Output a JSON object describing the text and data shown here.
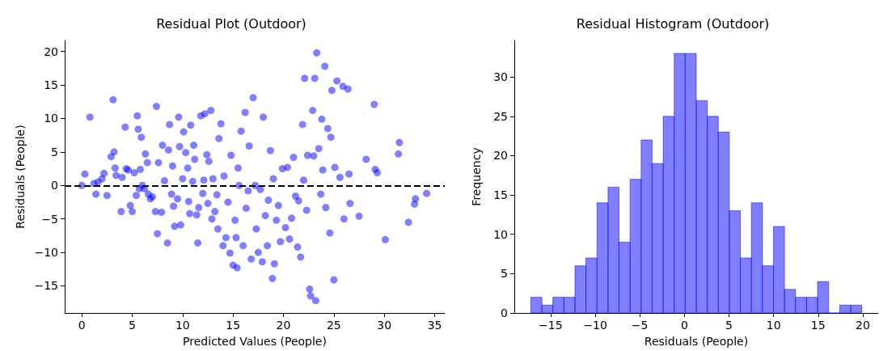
{
  "chart_data": [
    {
      "type": "scatter",
      "title": "Residual Plot (Outdoor)",
      "xlabel": "Predicted Values (People)",
      "ylabel": "Residuals (People)",
      "marker": "circle",
      "xlim": [
        -1.7,
        36.0
      ],
      "ylim": [
        -19.05,
        21.65
      ],
      "xticks": [
        0,
        5,
        10,
        15,
        20,
        25,
        30,
        35
      ],
      "yticks": [
        -15,
        -10,
        -5,
        0,
        5,
        10,
        15,
        20
      ],
      "ref_lines": [
        {
          "axis": "y",
          "value": 0,
          "color": "#000000",
          "line_style": "dashed"
        }
      ],
      "series": [
        {
          "color": "#0000ff",
          "x": [
            0,
            0.3,
            0.8,
            1.2,
            1.4,
            1.6,
            2,
            2.2,
            2.5,
            2.9,
            3.1,
            3.2,
            3.3,
            3.4,
            3.9,
            4,
            4.3,
            4.4,
            4.6,
            4.8,
            5,
            5.2,
            5.4,
            5.5,
            5.6,
            5.7,
            5.8,
            5.9,
            6,
            6.2,
            6.3,
            6.5,
            6.6,
            6.8,
            7,
            7.3,
            7.4,
            7.5,
            7.6,
            7.9,
            8,
            8.2,
            8.5,
            8.6,
            8.7,
            8.9,
            9,
            9.1,
            9.2,
            9.5,
            9.6,
            9.7,
            9.8,
            10,
            10.1,
            10.3,
            10.5,
            10.6,
            10.7,
            10.8,
            11,
            11.1,
            11.2,
            11.4,
            11.5,
            11.6,
            11.8,
            12,
            12.1,
            12.2,
            12.4,
            12.5,
            12.6,
            12.8,
            12.9,
            13,
            13.2,
            13.4,
            13.5,
            13.6,
            13.8,
            14,
            14.1,
            14.3,
            14.5,
            14.7,
            14.8,
            15,
            15.2,
            15.3,
            15.4,
            15.5,
            15.6,
            15.8,
            16,
            16.2,
            16.3,
            16.5,
            16.6,
            16.8,
            17,
            17.2,
            17.3,
            17.5,
            17.7,
            17.9,
            18,
            18.2,
            18.4,
            18.5,
            18.7,
            18.9,
            19,
            19.1,
            19.3,
            19.5,
            19.7,
            19.9,
            20.2,
            20.4,
            20.6,
            20.8,
            21,
            21.2,
            21.4,
            21.5,
            21.7,
            21.9,
            22,
            22.1,
            22.3,
            22.4,
            22.6,
            22.7,
            22.9,
            23,
            23.1,
            23.2,
            23.3,
            23.5,
            23.7,
            23.8,
            23.9,
            24.1,
            24.2,
            24.4,
            24.6,
            24.7,
            24.8,
            25,
            25.1,
            25.3,
            25.6,
            25.9,
            26,
            26.4,
            26.5,
            26.6,
            27.5,
            28.2,
            29,
            29.1,
            29.3,
            30.1,
            31.4,
            31.5,
            32.4,
            33,
            33.1,
            34.2
          ],
          "values": [
            0,
            1.7,
            10.2,
            0.3,
            -1.3,
            0.5,
            1,
            1.8,
            -1.5,
            4.3,
            12.8,
            5,
            2.6,
            1.5,
            -3.9,
            1.2,
            8.7,
            2.5,
            2.3,
            -3,
            -3.9,
            1.9,
            -1.5,
            10.4,
            8.4,
            -0.5,
            2.4,
            7.2,
            0,
            -0.5,
            4.7,
            3.4,
            -1.3,
            -2,
            -1.7,
            -3.9,
            11.8,
            -7.2,
            3.4,
            -4,
            6,
            0.7,
            -8.6,
            5.3,
            9.1,
            -1.3,
            2.9,
            -3.1,
            -6.1,
            -2,
            10.2,
            5.8,
            -5.9,
            1,
            8,
            4.9,
            2.6,
            -2.4,
            -4.2,
            9,
            0.6,
            6,
            3.9,
            -4.4,
            -8.6,
            -3.3,
            10.4,
            -1.2,
            0.8,
            10.7,
            4.6,
            -2.7,
            3.6,
            11.2,
            -5,
            1,
            -3.9,
            -1.4,
            -6.5,
            7,
            9.2,
            -9,
            1.4,
            -7.8,
            -2.5,
            -10.1,
            4.5,
            -11.9,
            -5.2,
            -7.8,
            -12.3,
            2.6,
            0,
            8.1,
            -9,
            10.9,
            -3.4,
            -0.8,
            5.9,
            -11,
            13.1,
            0,
            -6.5,
            -10,
            -0.6,
            -11.4,
            10.2,
            -4.5,
            -9,
            -2.2,
            5.2,
            -13.9,
            1,
            -11.7,
            -5.2,
            -3,
            -8.4,
            2.5,
            -6.3,
            2.7,
            -8,
            -4.9,
            4.2,
            -1.6,
            -9.2,
            -2.3,
            -10.7,
            9.1,
            0.8,
            16,
            -3.7,
            4.5,
            -15.5,
            -16.5,
            11.2,
            4.4,
            16,
            -17.2,
            19.8,
            5.5,
            -1.3,
            9.9,
            2.3,
            17.8,
            -3.3,
            8.5,
            -7.1,
            7.2,
            14.2,
            -14.1,
            2.7,
            15.6,
            1.2,
            14.8,
            -5,
            14.4,
            1.7,
            -2.7,
            -4.6,
            3.9,
            12.1,
            2.4,
            1.9,
            -8.1,
            4.7,
            6.4,
            -5.5,
            -2.8,
            -2,
            -1.2
          ]
        }
      ]
    },
    {
      "type": "histogram",
      "title": "Residual Histogram (Outdoor)",
      "xlabel": "Residuals (People)",
      "ylabel": "Frequency",
      "color": "#0000ff",
      "xlim": [
        -19.07,
        21.73
      ],
      "ylim": [
        0,
        34.65
      ],
      "xticks": [
        -15,
        -10,
        -5,
        0,
        5,
        10,
        15,
        20
      ],
      "yticks": [
        0,
        5,
        10,
        15,
        20,
        25,
        30
      ],
      "bins": [
        -17.22,
        -15.98,
        -14.75,
        -13.51,
        -12.27,
        -11.04,
        -9.8,
        -8.56,
        -7.33,
        -6.09,
        -4.85,
        -3.62,
        -2.38,
        -1.14,
        0.09,
        1.33,
        2.57,
        3.8,
        5.04,
        6.28,
        7.51,
        8.75,
        9.99,
        11.22,
        12.46,
        13.7,
        14.93,
        16.17,
        17.41,
        18.64,
        19.88
      ],
      "values": [
        2,
        1,
        2,
        2,
        6,
        7,
        14,
        16,
        9,
        17,
        22,
        19,
        25,
        33,
        33,
        27,
        25,
        23,
        13,
        7,
        14,
        6,
        11,
        3,
        2,
        2,
        4,
        0,
        1,
        1
      ]
    }
  ]
}
